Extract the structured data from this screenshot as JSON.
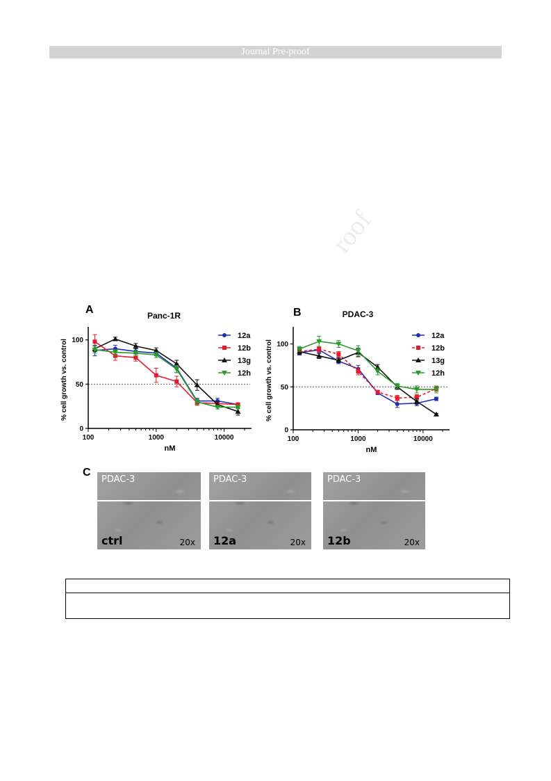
{
  "header": {
    "banner_text": "Journal Pre-proof"
  },
  "watermark_text": "roof",
  "colors": {
    "12a": "#1f2fb3",
    "12b": "#e8192c",
    "13g": "#111111",
    "12h": "#2a9a2a"
  },
  "chart_data": [
    {
      "panel": "A",
      "type": "line",
      "title": "Panc-1R",
      "xlabel": "nM",
      "ylabel": "% cell growth vs. control",
      "xscale": "log",
      "xlim": [
        100,
        20000
      ],
      "ylim": [
        0,
        110
      ],
      "xticks": [
        100,
        1000,
        10000
      ],
      "xtick_labels": [
        "100",
        "1000",
        "10000"
      ],
      "yticks": [
        0,
        50,
        100
      ],
      "ytick_labels": [
        "0",
        "50",
        "100"
      ],
      "reference_line_y": 50,
      "legend_position": "top-right",
      "x": [
        125,
        250,
        500,
        1000,
        2000,
        4000,
        8000,
        16000
      ],
      "series": [
        {
          "name": "12a",
          "values": [
            88,
            90,
            87,
            85,
            68,
            31,
            31,
            27
          ],
          "errors": [
            6,
            4,
            3,
            3,
            5,
            3,
            3,
            2
          ],
          "marker": "circle",
          "dash": false
        },
        {
          "name": "12b",
          "values": [
            98,
            82,
            80,
            60,
            53,
            29,
            28,
            27
          ],
          "errors": [
            8,
            5,
            4,
            8,
            6,
            3,
            2,
            2
          ],
          "marker": "square",
          "dash": false
        },
        {
          "name": "13g",
          "values": [
            90,
            101,
            93,
            88,
            73,
            49,
            27,
            19
          ],
          "errors": [
            3,
            2,
            3,
            3,
            4,
            6,
            3,
            4
          ],
          "marker": "triangle",
          "dash": false
        },
        {
          "name": "12h",
          "values": [
            89,
            86,
            85,
            83,
            67,
            30,
            24,
            24
          ],
          "errors": [
            4,
            3,
            3,
            3,
            4,
            3,
            2,
            2
          ],
          "marker": "triangle-down",
          "dash": false
        }
      ]
    },
    {
      "panel": "B",
      "type": "line",
      "title": "PDAC-3",
      "xlabel": "nM",
      "ylabel": "% cell growth vs. control",
      "xscale": "log",
      "xlim": [
        100,
        20000
      ],
      "ylim": [
        0,
        115
      ],
      "xticks": [
        100,
        1000,
        10000
      ],
      "xtick_labels": [
        "100",
        "1000",
        "10000"
      ],
      "yticks": [
        0,
        50,
        100
      ],
      "ytick_labels": [
        "0",
        "50",
        "100"
      ],
      "reference_line_y": 50,
      "legend_position": "top-right",
      "x": [
        125,
        250,
        500,
        1000,
        2000,
        4000,
        8000,
        16000
      ],
      "series": [
        {
          "name": "12a",
          "values": [
            90,
            93,
            80,
            71,
            43,
            30,
            31,
            36
          ],
          "errors": [
            3,
            3,
            3,
            4,
            2,
            4,
            3,
            2
          ],
          "marker": "circle",
          "dash": false
        },
        {
          "name": "12b",
          "values": [
            91,
            94,
            88,
            68,
            44,
            37,
            38,
            48
          ],
          "errors": [
            3,
            3,
            3,
            4,
            2,
            3,
            3,
            3
          ],
          "marker": "square",
          "dash": true
        },
        {
          "name": "13g",
          "values": [
            91,
            86,
            81,
            90,
            73,
            50,
            33,
            18
          ],
          "errors": [
            3,
            3,
            3,
            5,
            3,
            3,
            3,
            1
          ],
          "marker": "triangle",
          "dash": false
        },
        {
          "name": "12h",
          "values": [
            94,
            103,
            100,
            92,
            68,
            51,
            47,
            47
          ],
          "errors": [
            3,
            6,
            4,
            6,
            4,
            3,
            4,
            4
          ],
          "marker": "triangle-down",
          "dash": false
        }
      ]
    }
  ],
  "panel_c": {
    "label": "C",
    "images": [
      {
        "cell_line": "PDAC-3",
        "condition": "ctrl",
        "magnification": "20x"
      },
      {
        "cell_line": "PDAC-3",
        "condition": "12a",
        "magnification": "20x"
      },
      {
        "cell_line": "PDAC-3",
        "condition": "12b",
        "magnification": "20x"
      }
    ]
  }
}
